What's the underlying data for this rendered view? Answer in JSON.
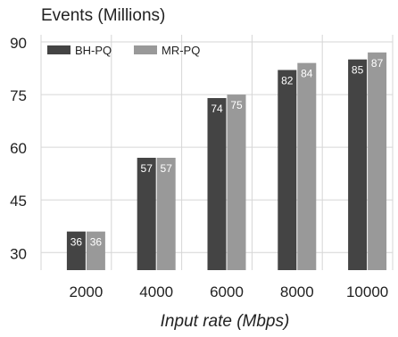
{
  "chart_data": {
    "type": "bar",
    "title": "Events (Millions)",
    "xlabel": "Input rate (Mbps)",
    "ylabel": "",
    "categories": [
      "2000",
      "4000",
      "6000",
      "8000",
      "10000"
    ],
    "series": [
      {
        "name": "BH-PQ",
        "values": [
          36,
          57,
          74,
          82,
          85
        ],
        "color": "#444444"
      },
      {
        "name": "MR-PQ",
        "values": [
          36,
          57,
          75,
          84,
          87
        ],
        "color": "#999999"
      }
    ],
    "ylim": [
      25,
      90
    ],
    "yticks": [
      30,
      45,
      60,
      75,
      90
    ],
    "grid": true,
    "legend": "top-left",
    "data_labels": true
  }
}
